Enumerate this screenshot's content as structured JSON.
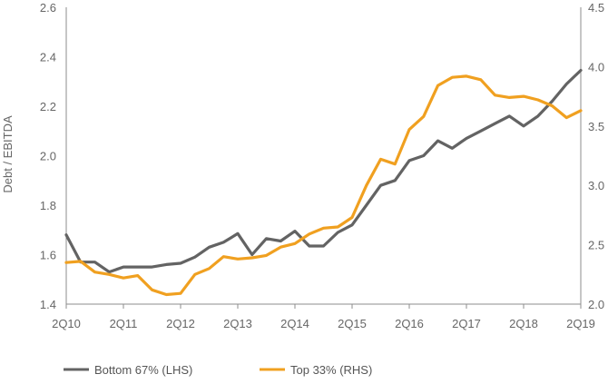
{
  "chart_data": {
    "type": "line",
    "ylabel": "Debt / EBITDA",
    "y2label": "",
    "grid": false,
    "legend_position": "bottom",
    "x_ticks": [
      "2Q10",
      "2Q11",
      "2Q12",
      "2Q13",
      "2Q14",
      "2Q15",
      "2Q16",
      "2Q17",
      "2Q18",
      "2Q19"
    ],
    "ylim": [
      1.4,
      2.6
    ],
    "y_ticks": [
      "1.4",
      "1.6",
      "1.8",
      "2.0",
      "2.2",
      "2.4",
      "2.6"
    ],
    "y2lim": [
      2.0,
      4.5
    ],
    "y2_ticks": [
      "2.0",
      "2.5",
      "3.0",
      "3.5",
      "4.0",
      "4.5"
    ],
    "x": [
      "2Q10",
      "3Q10",
      "4Q10",
      "1Q11",
      "2Q11",
      "3Q11",
      "4Q11",
      "1Q12",
      "2Q12",
      "3Q12",
      "4Q12",
      "1Q13",
      "2Q13",
      "3Q13",
      "4Q13",
      "1Q14",
      "2Q14",
      "3Q14",
      "4Q14",
      "1Q15",
      "2Q15",
      "3Q15",
      "4Q15",
      "1Q16",
      "2Q16",
      "3Q16",
      "4Q16",
      "1Q17",
      "2Q17",
      "3Q17",
      "4Q17",
      "1Q18",
      "2Q18",
      "3Q18",
      "4Q18",
      "1Q19",
      "2Q19"
    ],
    "series": [
      {
        "name": "Bottom 67% (LHS)",
        "axis": "left",
        "color": "#636363",
        "values": [
          1.68,
          1.57,
          1.57,
          1.53,
          1.55,
          1.55,
          1.55,
          1.56,
          1.565,
          1.59,
          1.63,
          1.65,
          1.685,
          1.6,
          1.665,
          1.655,
          1.695,
          1.635,
          1.635,
          1.69,
          1.72,
          1.8,
          1.88,
          1.9,
          1.98,
          2.0,
          2.06,
          2.03,
          2.07,
          2.1,
          2.13,
          2.16,
          2.12,
          2.16,
          2.22,
          2.29,
          2.345
        ]
      },
      {
        "name": "Top 33% (RHS)",
        "axis": "right",
        "color": "#F0A020",
        "values": [
          2.35,
          2.36,
          2.27,
          2.25,
          2.22,
          2.24,
          2.12,
          2.08,
          2.09,
          2.25,
          2.3,
          2.4,
          2.38,
          2.39,
          2.41,
          2.48,
          2.51,
          2.59,
          2.64,
          2.65,
          2.73,
          3.0,
          3.22,
          3.18,
          3.47,
          3.58,
          3.84,
          3.91,
          3.92,
          3.89,
          3.76,
          3.74,
          3.75,
          3.72,
          3.67,
          3.57,
          3.63
        ]
      }
    ]
  }
}
